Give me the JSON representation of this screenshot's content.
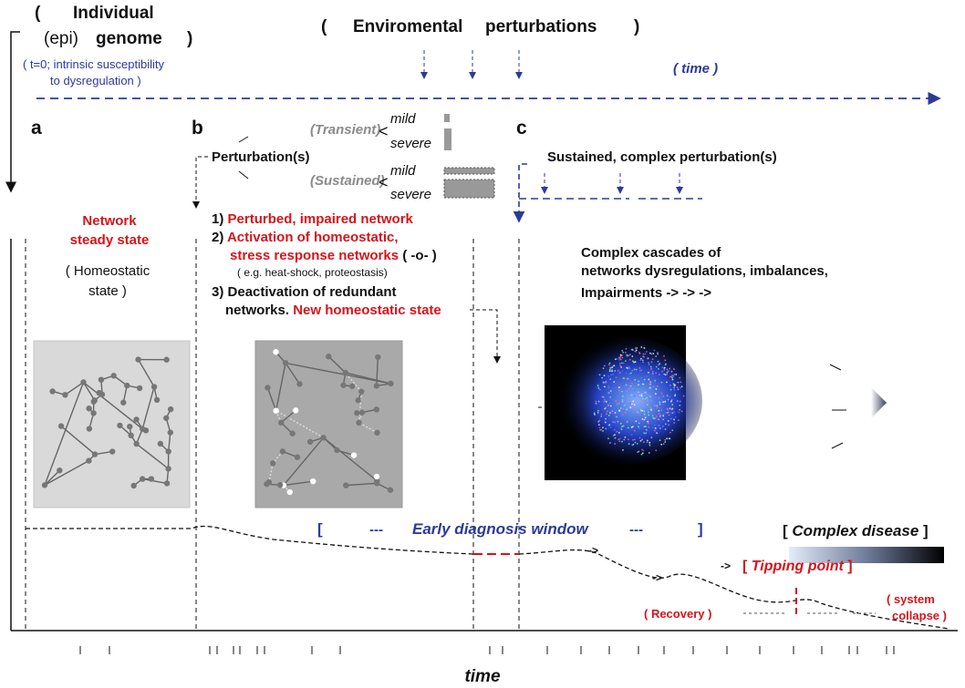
{
  "header": {
    "open": "(",
    "individual": "Individual",
    "epi": "(epi)",
    "genome": "genome",
    "close": ")",
    "susceptibility": [
      "( t=0; intrinsic susceptibility",
      "to dysregulation )"
    ]
  },
  "environment": {
    "open": "(",
    "label": "Enviromental",
    "label2": "perturbations",
    "close": ")",
    "time": "( time )"
  },
  "panels": {
    "a": "a",
    "b": "b",
    "c": "c"
  },
  "perturbation": {
    "label": "Perturbation(s)",
    "brace": "<",
    "transient": {
      "label": "(Transient)",
      "mild": "mild",
      "severe": "severe"
    },
    "sustained": {
      "label": "(Sustained)",
      "mild": "mild",
      "severe": "severe"
    }
  },
  "sustained_complex": "Sustained, complex perturbation(s)",
  "network_a": {
    "title": [
      "Network",
      "steady state"
    ],
    "note": [
      "( Homeostatic",
      "state )"
    ]
  },
  "steps": [
    {
      "num": "1)",
      "text": "Perturbed, impaired network"
    },
    {
      "num": "2)",
      "text": [
        "Activation of  homeostatic,",
        "stress response networks"
      ],
      "symbol": "( -o- )",
      "example": "( e.g. heat-shock, proteostasis)"
    },
    {
      "num": "3)",
      "text": [
        "Deactivation of redundant",
        "networks."
      ],
      "result": "New homeostatic state"
    }
  ],
  "cascade": [
    "Complex cascades of",
    "networks dysregulations, imbalances,",
    "Impairments -> -> ->"
  ],
  "disease": {
    "open": "[",
    "label": "Complex disease",
    "close": "]"
  },
  "window": {
    "open": "[",
    "dash1": "---",
    "label": "Early diagnosis window",
    "dash2": "---",
    "close": "]"
  },
  "trajectory_arrows": [
    "->",
    "->",
    "->"
  ],
  "tipping": {
    "open": "[",
    "label": "Tipping point",
    "close": "]"
  },
  "recovery": "( Recovery )",
  "collapse": [
    "( system",
    "collapse )"
  ],
  "x_axis": "time"
}
